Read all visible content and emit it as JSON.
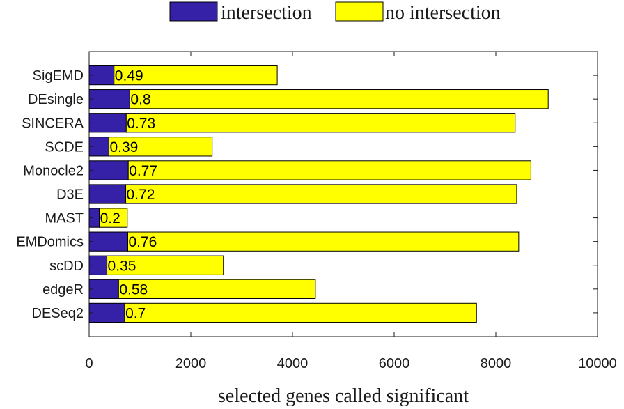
{
  "chart_data": {
    "type": "bar",
    "orientation": "horizontal",
    "stacked": true,
    "categories": [
      "SigEMD",
      "DEsingle",
      "SINCERA",
      "SCDE",
      "Monocle2",
      "D3E",
      "MAST",
      "EMDomics",
      "scDD",
      "edgeR",
      "DESeq2"
    ],
    "series": [
      {
        "name": "intersection",
        "color": "#3520a8",
        "values": [
          490,
          800,
          730,
          390,
          770,
          720,
          200,
          760,
          350,
          580,
          700
        ]
      },
      {
        "name": "no intersection",
        "color": "#ffff00",
        "values": [
          3210,
          8230,
          7650,
          2030,
          7920,
          7690,
          550,
          7690,
          2290,
          3870,
          6920
        ]
      }
    ],
    "bar_labels": [
      "0.49",
      "0.8",
      "0.73",
      "0.39",
      "0.77",
      "0.72",
      "0.2",
      "0.76",
      "0.35",
      "0.58",
      "0.7"
    ],
    "xlabel": "selected genes called significant",
    "ylabel": "",
    "title": "",
    "xlim": [
      0,
      10000
    ],
    "xticks": [
      "0",
      "2000",
      "4000",
      "6000",
      "8000",
      "10000"
    ],
    "grid": false,
    "legend_position": "top-center"
  }
}
